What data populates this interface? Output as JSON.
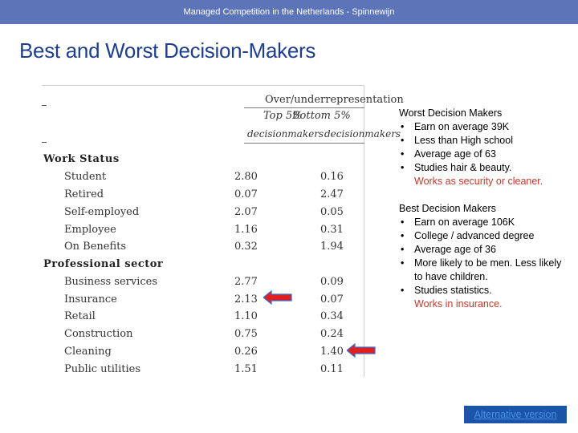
{
  "header": {
    "banner": "Managed Competition in the Netherlands - Spinnewijn",
    "title": "Best and Worst Decision-Makers"
  },
  "table": {
    "group_header": "Over/underrepresentation",
    "col_top": "Top 5%",
    "col_bottom": "Bottom 5%",
    "col_top_sub": "decisionmakers",
    "col_bottom_sub": "decisionmakers",
    "sections": [
      {
        "title": "Work Status",
        "rows": [
          {
            "label": "Student",
            "top": "2.80",
            "bottom": "0.16"
          },
          {
            "label": "Retired",
            "top": "0.07",
            "bottom": "2.47"
          },
          {
            "label": "Self-employed",
            "top": "2.07",
            "bottom": "0.05"
          },
          {
            "label": "Employee",
            "top": "1.16",
            "bottom": "0.31"
          },
          {
            "label": "On Benefits",
            "top": "0.32",
            "bottom": "1.94"
          }
        ]
      },
      {
        "title": "Professional sector",
        "rows": [
          {
            "label": "Business services",
            "top": "2.77",
            "bottom": "0.09"
          },
          {
            "label": "Insurance",
            "top": "2.13",
            "bottom": "0.07"
          },
          {
            "label": "Retail",
            "top": "1.10",
            "bottom": "0.34"
          },
          {
            "label": "Construction",
            "top": "0.75",
            "bottom": "0.24"
          },
          {
            "label": "Cleaning",
            "top": "0.26",
            "bottom": "1.40"
          },
          {
            "label": "Public utilities",
            "top": "1.51",
            "bottom": "0.11"
          }
        ]
      }
    ]
  },
  "arrow_color": "#e02020",
  "arrow_outline": "#3a6fc4",
  "worst": {
    "title": "Worst Decision Makers",
    "bullets": [
      "Earn on average 39K",
      "Less than High school",
      "Average age of 63",
      "Studies hair & beauty."
    ],
    "note": "Works as security or cleaner."
  },
  "best": {
    "title": "Best Decision Makers",
    "bullets": [
      "Earn on average 106K",
      "College / advanced degree",
      "Average age of 36",
      "More likely to be men. Less likely to have children.",
      "Studies statistics."
    ],
    "note": "Works in insurance."
  },
  "footer": {
    "alt_link": "Alternative version"
  }
}
